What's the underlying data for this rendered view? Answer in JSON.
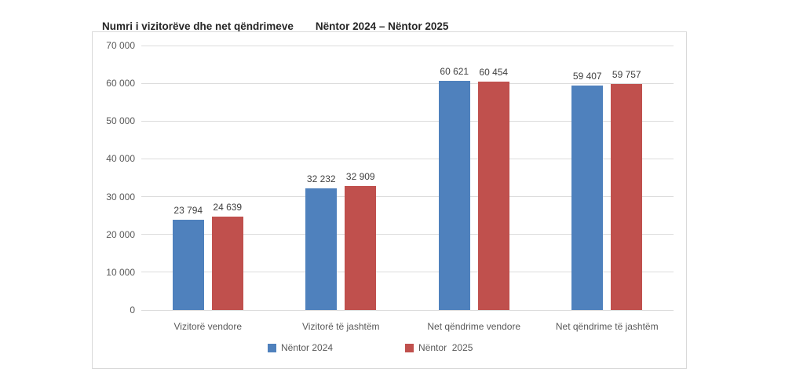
{
  "title": {
    "left": "Numri i vizitorëve dhe net qëndrimeve",
    "right": "Nëntor 2024 – Nëntor 2025"
  },
  "colors": {
    "series_2024": "#4F81BD",
    "series_2025": "#C0504D",
    "gridline": "#DCDCDC",
    "chart_border": "#D9D9D9",
    "axis_text": "#595959",
    "value_label_text": "#404040",
    "title_text": "#262626"
  },
  "chart_data": {
    "type": "bar",
    "title": "Numri i vizitorëve dhe net qëndrimeve Nëntor 2024 – Nëntor 2025",
    "categories": [
      "Vizitorë vendore",
      "Vizitorë të jashtëm",
      "Net qëndrime vendore",
      "Net qëndrime të jashtëm"
    ],
    "series": [
      {
        "name": "Nëntor 2024",
        "color": "#4F81BD",
        "values": [
          23794,
          32232,
          60621,
          59407
        ],
        "value_labels": [
          "23 794",
          "32 232",
          "60 621",
          "59 407"
        ]
      },
      {
        "name": "Nëntor  2025",
        "color": "#C0504D",
        "values": [
          24639,
          32909,
          60454,
          59757
        ],
        "value_labels": [
          "24 639",
          "32 909",
          "60 454",
          "59 757"
        ]
      }
    ],
    "ylim": [
      0,
      70000
    ],
    "yticks": [
      {
        "value": 0,
        "label": "0"
      },
      {
        "value": 10000,
        "label": "10 000"
      },
      {
        "value": 20000,
        "label": "20 000"
      },
      {
        "value": 30000,
        "label": "30 000"
      },
      {
        "value": 40000,
        "label": "40 000"
      },
      {
        "value": 50000,
        "label": "50 000"
      },
      {
        "value": 60000,
        "label": "60 000"
      },
      {
        "value": 70000,
        "label": "70 000"
      }
    ],
    "grid": true,
    "legend_position": "bottom"
  }
}
